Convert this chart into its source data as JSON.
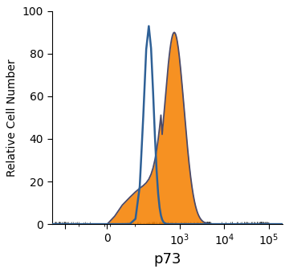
{
  "title": "",
  "xlabel": "p73",
  "ylabel": "Relative Cell Number",
  "ylim": [
    0,
    100
  ],
  "yticks": [
    0,
    20,
    40,
    60,
    80,
    100
  ],
  "bg_color": "#ffffff",
  "blue_color": "#2e6096",
  "orange_color": "#f5850a",
  "orange_edge_color": "#4a4a6a",
  "blue_peak": 200,
  "blue_peak_height": 93,
  "blue_sigma_log": 0.11,
  "orange_peak": 750,
  "orange_peak_height": 90,
  "orange_sigma_log": 0.22,
  "linthresh": 50,
  "linscale": 0.3,
  "xlim_min": -400,
  "xlim_max": 200000,
  "xlabel_fontsize": 13,
  "ylabel_fontsize": 10,
  "tick_fontsize": 10
}
